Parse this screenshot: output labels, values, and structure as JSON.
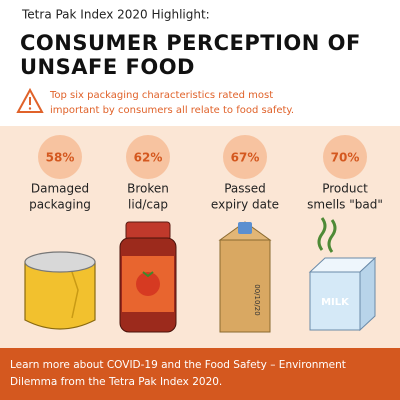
{
  "header": {
    "kicker": "Tetra Pak Index 2020 Highlight:",
    "title_lines": [
      "CONSUMER PERCEPTION OF",
      "UNSAFE FOOD"
    ]
  },
  "warning": {
    "lines": [
      "Top six packaging characteristics rated most",
      "important by consumers all relate to food safety."
    ]
  },
  "items": [
    {
      "percent": "58%",
      "label_lines": [
        "Damaged",
        "packaging"
      ]
    },
    {
      "percent": "62%",
      "label_lines": [
        "Broken",
        "lid/cap"
      ]
    },
    {
      "percent": "67%",
      "label_lines": [
        "Passed",
        "expiry date"
      ]
    },
    {
      "percent": "70%",
      "label_lines": [
        "Product",
        "smells \"bad\""
      ]
    }
  ],
  "illustration_texts": {
    "carton_date": "00/10/20",
    "milk": "MILK"
  },
  "footer": {
    "lines": [
      "Learn more about COVID-19 and the Food Safety – Environment",
      "Dilemma from the Tetra Pak Index 2020."
    ]
  }
}
